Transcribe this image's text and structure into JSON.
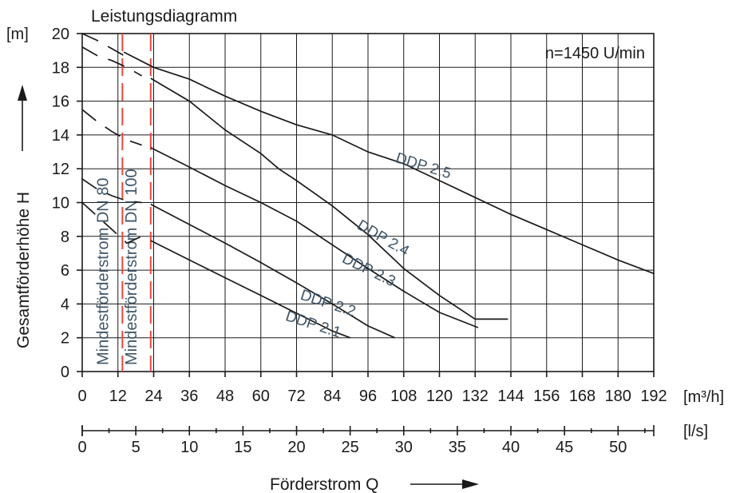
{
  "chart_data": {
    "type": "line",
    "title": "Leistungsdiagramm",
    "annotation": "n=1450 U/min",
    "ylabel": "Gesamtförderhöhe  H",
    "yunit": "[m]",
    "xlabel": "Förderstrom  Q",
    "xunit": "[m³/h]",
    "x2unit": "[l/s]",
    "xlim": [
      0,
      192
    ],
    "ylim": [
      0,
      20
    ],
    "x2lim": [
      0,
      53.33
    ],
    "grid": true,
    "xticks": [
      "0",
      "12",
      "24",
      "36",
      "48",
      "60",
      "72",
      "84",
      "96",
      "108",
      "120",
      "132",
      "144",
      "156",
      "168",
      "180",
      "192"
    ],
    "yticks": [
      "0",
      "2",
      "4",
      "6",
      "8",
      "10",
      "12",
      "14",
      "16",
      "18",
      "20"
    ],
    "x2ticks": [
      "0",
      "5",
      "10",
      "15",
      "20",
      "25",
      "30",
      "35",
      "40",
      "45",
      "50"
    ],
    "limits": [
      {
        "label": "Mindestförderstrom DN 80",
        "x": 13.5,
        "color": "#e8483f"
      },
      {
        "label": "Mindestförderstrom DN 100",
        "x": 23,
        "color": "#e8483f"
      }
    ],
    "series": [
      {
        "name": "DDP 2.1",
        "dashed": [
          [
            0,
            10
          ],
          [
            5,
            9.2
          ],
          [
            10,
            8.4
          ],
          [
            15,
            7.6
          ],
          [
            20,
            8
          ]
        ],
        "values": [
          [
            23,
            7.75
          ],
          [
            36,
            6.6
          ],
          [
            48,
            5.55
          ],
          [
            60,
            4.5
          ],
          [
            72,
            3.45
          ],
          [
            84,
            2.4
          ],
          [
            90,
            2
          ]
        ]
      },
      {
        "name": "DDP 2.2",
        "dashed": [
          [
            0,
            11.4
          ],
          [
            5,
            10.8
          ],
          [
            10,
            10.4
          ],
          [
            15,
            10.1
          ],
          [
            20,
            10
          ]
        ],
        "values": [
          [
            23,
            9.9
          ],
          [
            36,
            8.7
          ],
          [
            48,
            7.6
          ],
          [
            60,
            6.45
          ],
          [
            72,
            5.25
          ],
          [
            84,
            4
          ],
          [
            96,
            2.7
          ],
          [
            105,
            2
          ]
        ]
      },
      {
        "name": "DDP 2.3",
        "dashed": [
          [
            0,
            15.5
          ],
          [
            5,
            14.8
          ],
          [
            10,
            14.2
          ],
          [
            15,
            13.7
          ],
          [
            20,
            13.4
          ]
        ],
        "values": [
          [
            23,
            13.25
          ],
          [
            36,
            12.1
          ],
          [
            48,
            11
          ],
          [
            60,
            10
          ],
          [
            72,
            8.9
          ],
          [
            84,
            7.5
          ],
          [
            96,
            6.1
          ],
          [
            108,
            4.75
          ],
          [
            120,
            3.5
          ],
          [
            133,
            2.6
          ]
        ]
      },
      {
        "name": "DDP 2.4",
        "dashed": [
          [
            0,
            19.2
          ],
          [
            5,
            18.7
          ],
          [
            10,
            18.4
          ],
          [
            15,
            18
          ],
          [
            20,
            17.5
          ]
        ],
        "values": [
          [
            23,
            17.35
          ],
          [
            36,
            16
          ],
          [
            48,
            14.3
          ],
          [
            60,
            12.9
          ],
          [
            66,
            12
          ],
          [
            72,
            11.3
          ],
          [
            84,
            9.8
          ],
          [
            96,
            8.1
          ],
          [
            108,
            6.1
          ],
          [
            120,
            4.5
          ],
          [
            132,
            3.1
          ],
          [
            143,
            3.1
          ]
        ]
      },
      {
        "name": "DDP 2.5",
        "dashed": [
          [
            0,
            20
          ],
          [
            5,
            19.6
          ],
          [
            10,
            19.1
          ],
          [
            15,
            18.6
          ]
        ],
        "values": [
          [
            14,
            18.9
          ],
          [
            24,
            18
          ],
          [
            36,
            17.3
          ],
          [
            48,
            16.3
          ],
          [
            60,
            15.4
          ],
          [
            72,
            14.6
          ],
          [
            84,
            14
          ],
          [
            96,
            13
          ],
          [
            108,
            12.3
          ],
          [
            120,
            11.3
          ],
          [
            132,
            10.3
          ],
          [
            144,
            9.3
          ],
          [
            156,
            8.4
          ],
          [
            168,
            7.5
          ],
          [
            180,
            6.6
          ],
          [
            192,
            5.8
          ]
        ]
      }
    ]
  }
}
